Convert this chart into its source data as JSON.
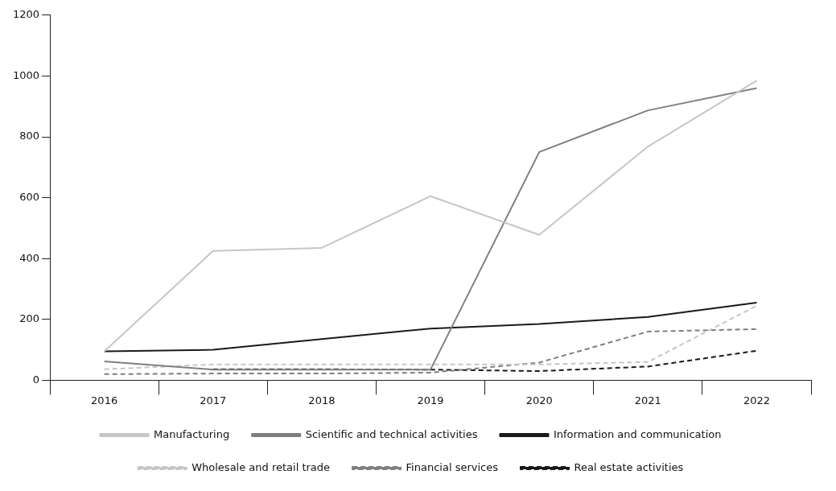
{
  "chart_data": {
    "type": "line",
    "categories": [
      "2016",
      "2017",
      "2018",
      "2019",
      "2020",
      "2021",
      "2022"
    ],
    "series": [
      {
        "name": "Manufacturing",
        "color": "#c6c6c6",
        "line_style": "solid",
        "values": [
          95,
          425,
          435,
          605,
          478,
          768,
          985
        ]
      },
      {
        "name": "Scientific and technical activities",
        "color": "#7f7f7f",
        "line_style": "solid",
        "values": [
          62,
          35,
          35,
          35,
          750,
          887,
          960
        ]
      },
      {
        "name": "Information and communication",
        "color": "#1a1a1a",
        "line_style": "solid",
        "values": [
          95,
          100,
          135,
          170,
          185,
          208,
          255
        ]
      },
      {
        "name": "Wholesale and retail trade",
        "color": "#c6c6c6",
        "line_style": "dashed",
        "values": [
          36,
          52,
          52,
          52,
          52,
          60,
          245
        ]
      },
      {
        "name": "Financial services",
        "color": "#7f7f7f",
        "line_style": "dashed",
        "values": [
          20,
          22,
          22,
          25,
          58,
          160,
          168
        ]
      },
      {
        "name": "Real estate activities",
        "color": "#1a1a1a",
        "line_style": "dashed",
        "values": [
          null,
          36,
          36,
          35,
          30,
          45,
          97
        ]
      }
    ],
    "ylim": [
      0,
      1200
    ],
    "yticks": [
      0,
      200,
      400,
      600,
      800,
      1000,
      1200
    ],
    "grid": false,
    "marker": "none",
    "legend": "bottom"
  }
}
